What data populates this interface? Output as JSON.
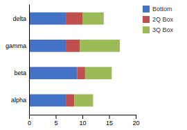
{
  "chart_data": {
    "type": "bar",
    "orientation": "horizontal",
    "stacked": true,
    "categories": [
      "alpha",
      "beta",
      "gamma",
      "delta"
    ],
    "series": [
      {
        "name": "Bottom",
        "color": "#4472C4",
        "values": [
          7.0,
          9.0,
          7.0,
          7.0
        ]
      },
      {
        "name": "2Q Box",
        "color": "#C0504D",
        "values": [
          1.5,
          1.5,
          2.5,
          3.0
        ]
      },
      {
        "name": "3Q Box",
        "color": "#9BBB59",
        "values": [
          3.5,
          5.0,
          7.5,
          4.0
        ]
      }
    ],
    "xlim": [
      0,
      20
    ],
    "xticks": [
      0,
      5,
      10,
      15,
      20
    ],
    "legend": "right"
  }
}
